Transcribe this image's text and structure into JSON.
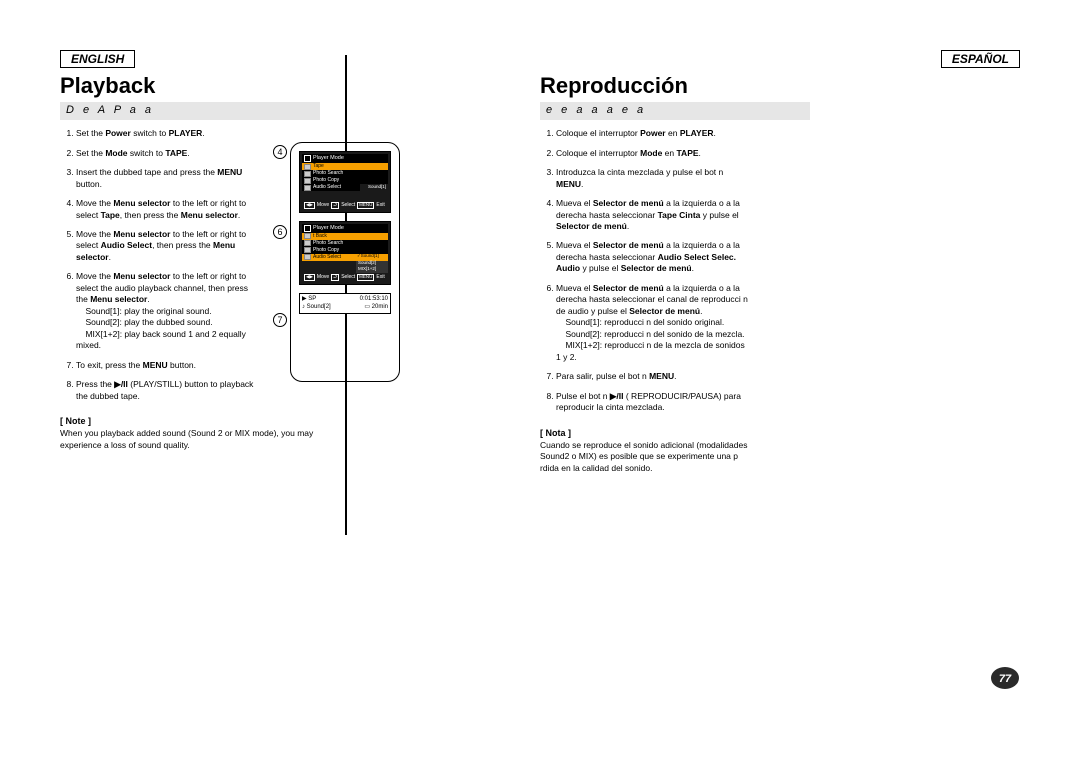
{
  "page_number": "77",
  "en": {
    "lang_label": "ENGLISH",
    "title": "Playback",
    "subtitle": "D   e   A         P  a     a",
    "steps": [
      "Set the <b>Power</b> switch to <b>PLAYER</b>.",
      "Set the <b>Mode</b> switch to <b>TAPE</b>.",
      "Insert the dubbed tape and press the <b>MENU</b> button.",
      "Move the <b>Menu selector</b> to the left or right to select <b>Tape</b>, then press the <b>Menu selector</b>.",
      "Move the <b>Menu selector</b> to the left or right to select <b>Audio Select</b>, then press the <b>Menu selector</b>.",
      "Move the <b>Menu selector</b> to the left or right to select the audio playback channel, then press the <b>Menu selector</b>.<br>&nbsp;&nbsp;&nbsp;&nbsp;Sound[1]: play the original sound.<br>&nbsp;&nbsp;&nbsp;&nbsp;Sound[2]: play the dubbed sound.<br>&nbsp;&nbsp;&nbsp;&nbsp;MIX[1+2]: play back sound 1 and 2 equally mixed.",
      "To exit, press the <b>MENU</b> button.",
      "Press the <b>▶/II</b> (PLAY/STILL) button to playback the dubbed tape."
    ],
    "note_label": "[ Note ]",
    "note_body": "When you playback added sound (Sound 2 or MIX mode), you may experience a loss of sound quality."
  },
  "es": {
    "lang_label": "ESPAÑOL",
    "title": "Reproducción",
    "subtitle": "e               e   a         a          a             e    a",
    "steps": [
      "Coloque el interruptor <b>Power</b> en <b>PLAYER</b>.",
      "Coloque el interruptor <b>Mode</b> en <b>TAPE</b>.",
      "Introduzca la cinta mezclada y pulse el bot n <b>MENU</b>.",
      "Mueva el <b>Selector de menú</b> a la izquierda o a la derecha hasta seleccionar <b>Tape   Cinta</b>  y pulse el <b>Selector de menú</b>.",
      "Mueva el <b>Selector de menú</b> a la izquierda o a la derecha hasta seleccionar <b>Audio Select   Selec. Audio</b>  y pulse el <b>Selector de menú</b>.",
      "Mueva el <b>Selector de menú</b> a la izquierda o a la derecha hasta seleccionar el canal de reproducci n de audio y pulse el <b>Selector de menú</b>.<br>&nbsp;&nbsp;&nbsp;&nbsp;Sound[1]: reproducci n del sonido original.<br>&nbsp;&nbsp;&nbsp;&nbsp;Sound[2]: reproducci n del sonido de la mezcla.<br>&nbsp;&nbsp;&nbsp;&nbsp;MIX[1+2]: reproducci n de la mezcla de sonidos 1 y 2.",
      "Para salir, pulse el bot n <b>MENU</b>.",
      "Pulse el bot n <b>▶/II</b> ( REPRODUCIR/PAUSA) para reproducir la cinta mezclada."
    ],
    "note_label": "[ Nota ]",
    "note_body": "Cuando se reproduce el sonido adicional (modalidades Sound2 o MIX) es posible que se experimente una p rdida en la calidad del sonido."
  },
  "figure": {
    "callouts": [
      "4",
      "6",
      "7"
    ],
    "screen4": {
      "header": "Player Mode",
      "rows": [
        "Tape",
        "Photo Search",
        "Photo Copy",
        "Audio Select"
      ],
      "value": "Sound[1]",
      "footer_move": "Move",
      "footer_select": "Select",
      "footer_exit": "Exit",
      "footer_menu": "MENU"
    },
    "screen6": {
      "header": "Player Mode",
      "rows": [
        "t Back",
        "Photo Search",
        "Photo Copy",
        "Audio Select"
      ],
      "options": [
        "Sound[1]",
        "Sound[2]",
        "MIX[1+2]"
      ],
      "footer_move": "Move",
      "footer_select": "Select",
      "footer_exit": "Exit",
      "footer_menu": "MENU"
    },
    "screen7": {
      "mode": "SP",
      "time": "0:01:53:10",
      "audio": "Sound[2]",
      "remain": "20min"
    }
  },
  "colors": {
    "highlight": "#f7a000",
    "grey_bar": "#e6e6e6",
    "page_badge": "#2a2a2a"
  }
}
